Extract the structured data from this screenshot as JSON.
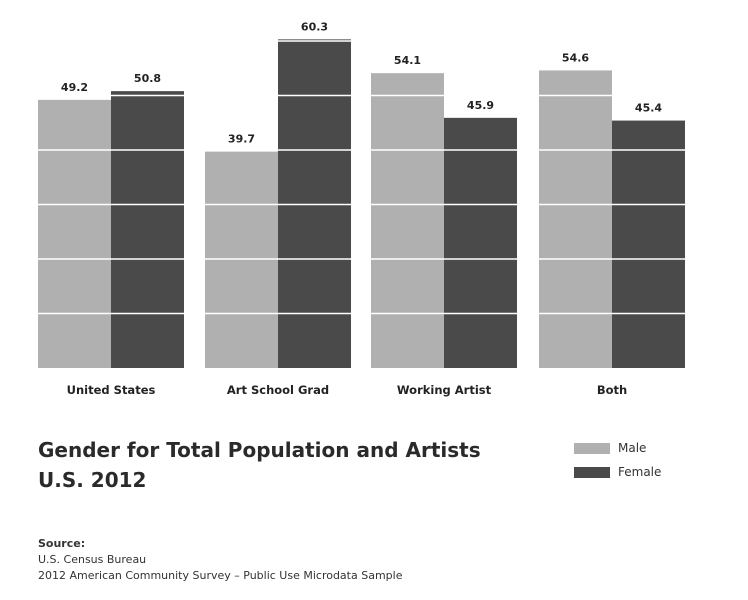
{
  "chart_data": {
    "type": "bar",
    "categories": [
      "United States",
      "Art School Grad",
      "Working Artist",
      "Both"
    ],
    "series": [
      {
        "name": "Male",
        "values": [
          49.2,
          39.7,
          54.1,
          54.6
        ],
        "color": "#b0b0b0"
      },
      {
        "name": "Female",
        "values": [
          50.8,
          60.3,
          45.9,
          45.4
        ],
        "color": "#4a4a4a"
      }
    ],
    "ylim": [
      0,
      60
    ],
    "grid": true,
    "legend": "bottom-right"
  },
  "title_lines": [
    "Gender for Total Population and Artists",
    "U.S. 2012"
  ],
  "source": {
    "heading": "Source:",
    "lines": [
      "U.S. Census Bureau",
      "2012 American Community Survey – Public Use Microdata Sample"
    ]
  }
}
